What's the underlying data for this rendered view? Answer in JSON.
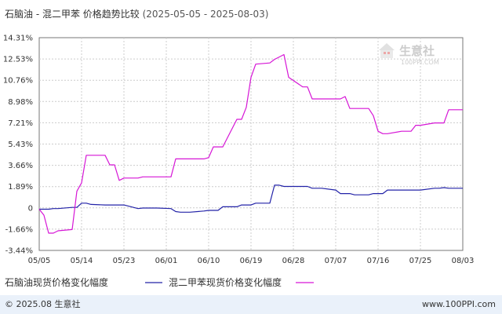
{
  "chart_data": {
    "type": "line",
    "title": "石脑油 - 混二甲苯 价格趋势比较",
    "date_range": "(2025-05-05 - 2025-08-03)",
    "x_start": "2025-05-05",
    "x_end": "2025-08-03",
    "x_ticks": [
      "05/05",
      "05/14",
      "05/23",
      "06/01",
      "06/10",
      "06/19",
      "06/28",
      "07/07",
      "07/16",
      "07/25",
      "08/03"
    ],
    "y_ticks": [
      "14.31%",
      "12.53%",
      "10.76%",
      "8.98%",
      "7.21%",
      "5.43%",
      "3.66%",
      "1.89%",
      "0",
      "-1.66%",
      "-3.44%"
    ],
    "ylim": [
      -3.44,
      14.31
    ],
    "grid": true,
    "legend_position": "bottom",
    "series": [
      {
        "name": "石脑油现货价格变化幅度",
        "color": "#2323a8",
        "points": [
          [
            "2025-05-05",
            0
          ],
          [
            "2025-05-06",
            0
          ],
          [
            "2025-05-07",
            0
          ],
          [
            "2025-05-08",
            0.05
          ],
          [
            "2025-05-09",
            0.05
          ],
          [
            "2025-05-12",
            0.15
          ],
          [
            "2025-05-13",
            0.15
          ],
          [
            "2025-05-14",
            0.5
          ],
          [
            "2025-05-15",
            0.5
          ],
          [
            "2025-05-16",
            0.4
          ],
          [
            "2025-05-19",
            0.35
          ],
          [
            "2025-05-20",
            0.35
          ],
          [
            "2025-05-21",
            0.35
          ],
          [
            "2025-05-22",
            0.35
          ],
          [
            "2025-05-23",
            0.35
          ],
          [
            "2025-05-26",
            0.05
          ],
          [
            "2025-05-27",
            0.1
          ],
          [
            "2025-05-28",
            0.1
          ],
          [
            "2025-05-29",
            0.1
          ],
          [
            "2025-05-30",
            0.1
          ],
          [
            "2025-06-02",
            0.05
          ],
          [
            "2025-06-03",
            -0.2
          ],
          [
            "2025-06-04",
            -0.25
          ],
          [
            "2025-06-05",
            -0.25
          ],
          [
            "2025-06-06",
            -0.25
          ],
          [
            "2025-06-09",
            -0.15
          ],
          [
            "2025-06-10",
            -0.1
          ],
          [
            "2025-06-11",
            -0.1
          ],
          [
            "2025-06-12",
            -0.1
          ],
          [
            "2025-06-13",
            0.2
          ],
          [
            "2025-06-16",
            0.2
          ],
          [
            "2025-06-17",
            0.35
          ],
          [
            "2025-06-18",
            0.35
          ],
          [
            "2025-06-19",
            0.35
          ],
          [
            "2025-06-20",
            0.5
          ],
          [
            "2025-06-23",
            0.5
          ],
          [
            "2025-06-24",
            2.0
          ],
          [
            "2025-06-25",
            2.0
          ],
          [
            "2025-06-26",
            1.9
          ],
          [
            "2025-06-27",
            1.9
          ],
          [
            "2025-06-30",
            1.9
          ],
          [
            "2025-07-01",
            1.9
          ],
          [
            "2025-07-02",
            1.75
          ],
          [
            "2025-07-03",
            1.75
          ],
          [
            "2025-07-04",
            1.75
          ],
          [
            "2025-07-07",
            1.6
          ],
          [
            "2025-07-08",
            1.3
          ],
          [
            "2025-07-09",
            1.3
          ],
          [
            "2025-07-10",
            1.3
          ],
          [
            "2025-07-11",
            1.2
          ],
          [
            "2025-07-14",
            1.2
          ],
          [
            "2025-07-15",
            1.3
          ],
          [
            "2025-07-16",
            1.3
          ],
          [
            "2025-07-17",
            1.3
          ],
          [
            "2025-07-18",
            1.6
          ],
          [
            "2025-07-21",
            1.6
          ],
          [
            "2025-07-22",
            1.6
          ],
          [
            "2025-07-23",
            1.6
          ],
          [
            "2025-07-24",
            1.6
          ],
          [
            "2025-07-25",
            1.6
          ],
          [
            "2025-07-28",
            1.75
          ],
          [
            "2025-07-29",
            1.75
          ],
          [
            "2025-07-30",
            1.8
          ],
          [
            "2025-07-31",
            1.75
          ],
          [
            "2025-08-01",
            1.75
          ],
          [
            "2025-08-03",
            1.75
          ]
        ]
      },
      {
        "name": "混二甲苯现货价格变化幅度",
        "color": "#d616d6",
        "points": [
          [
            "2025-05-05",
            0
          ],
          [
            "2025-05-06",
            -0.5
          ],
          [
            "2025-05-07",
            -2.0
          ],
          [
            "2025-05-08",
            -2.0
          ],
          [
            "2025-05-09",
            -1.8
          ],
          [
            "2025-05-12",
            -1.7
          ],
          [
            "2025-05-13",
            1.5
          ],
          [
            "2025-05-14",
            2.2
          ],
          [
            "2025-05-15",
            4.5
          ],
          [
            "2025-05-16",
            4.5
          ],
          [
            "2025-05-19",
            4.5
          ],
          [
            "2025-05-20",
            3.7
          ],
          [
            "2025-05-21",
            3.7
          ],
          [
            "2025-05-22",
            2.4
          ],
          [
            "2025-05-23",
            2.6
          ],
          [
            "2025-05-26",
            2.6
          ],
          [
            "2025-05-27",
            2.7
          ],
          [
            "2025-05-28",
            2.7
          ],
          [
            "2025-05-29",
            2.7
          ],
          [
            "2025-05-30",
            2.7
          ],
          [
            "2025-06-02",
            2.7
          ],
          [
            "2025-06-03",
            4.2
          ],
          [
            "2025-06-04",
            4.2
          ],
          [
            "2025-06-05",
            4.2
          ],
          [
            "2025-06-06",
            4.2
          ],
          [
            "2025-06-09",
            4.2
          ],
          [
            "2025-06-10",
            4.3
          ],
          [
            "2025-06-11",
            5.2
          ],
          [
            "2025-06-12",
            5.2
          ],
          [
            "2025-06-13",
            5.2
          ],
          [
            "2025-06-16",
            7.5
          ],
          [
            "2025-06-17",
            7.5
          ],
          [
            "2025-06-18",
            8.5
          ],
          [
            "2025-06-19",
            11.0
          ],
          [
            "2025-06-20",
            12.1
          ],
          [
            "2025-06-23",
            12.2
          ],
          [
            "2025-06-24",
            12.5
          ],
          [
            "2025-06-25",
            12.7
          ],
          [
            "2025-06-26",
            12.9
          ],
          [
            "2025-06-27",
            11.0
          ],
          [
            "2025-06-30",
            10.2
          ],
          [
            "2025-07-01",
            10.2
          ],
          [
            "2025-07-02",
            9.2
          ],
          [
            "2025-07-03",
            9.2
          ],
          [
            "2025-07-04",
            9.2
          ],
          [
            "2025-07-07",
            9.2
          ],
          [
            "2025-07-08",
            9.2
          ],
          [
            "2025-07-09",
            9.4
          ],
          [
            "2025-07-10",
            8.4
          ],
          [
            "2025-07-11",
            8.4
          ],
          [
            "2025-07-14",
            8.4
          ],
          [
            "2025-07-15",
            7.8
          ],
          [
            "2025-07-16",
            6.5
          ],
          [
            "2025-07-17",
            6.3
          ],
          [
            "2025-07-18",
            6.3
          ],
          [
            "2025-07-21",
            6.5
          ],
          [
            "2025-07-22",
            6.5
          ],
          [
            "2025-07-23",
            6.5
          ],
          [
            "2025-07-24",
            7.0
          ],
          [
            "2025-07-25",
            7.0
          ],
          [
            "2025-07-28",
            7.2
          ],
          [
            "2025-07-29",
            7.2
          ],
          [
            "2025-07-30",
            7.2
          ],
          [
            "2025-07-31",
            8.3
          ],
          [
            "2025-08-01",
            8.3
          ],
          [
            "2025-08-03",
            8.3
          ]
        ]
      }
    ]
  },
  "watermark": {
    "brand": "生意社",
    "url": "100PPI.COM"
  },
  "footer": {
    "copyright": "© 2025.08 生意社",
    "site": "www.100PPI.com"
  }
}
